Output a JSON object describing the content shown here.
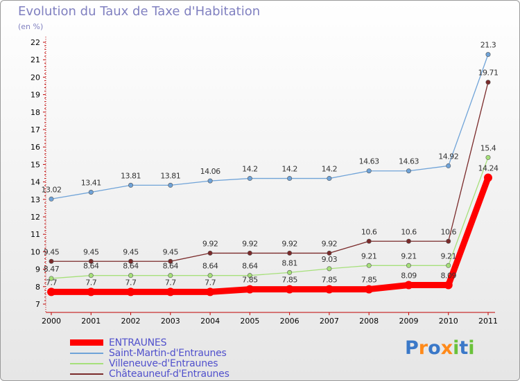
{
  "title": "Evolution du Taux de Taxe d'Habitation",
  "subtitle": "(en %)",
  "logo_text": "Proxiti",
  "chart_data": {
    "type": "line",
    "x": [
      "2000",
      "2001",
      "2002",
      "2003",
      "2004",
      "2005",
      "2006",
      "2007",
      "2008",
      "2009",
      "2010",
      "2011"
    ],
    "ylim": [
      7,
      22
    ],
    "yticks": [
      "7",
      "8",
      "9",
      "10",
      "11",
      "12",
      "13",
      "14",
      "15",
      "16",
      "17",
      "18",
      "19",
      "20",
      "21",
      "22"
    ],
    "grid": false,
    "legend_position": "bottom-left",
    "series": [
      {
        "name": "ENTRAUNES",
        "color": "#ff0000",
        "values": [
          7.7,
          7.7,
          7.7,
          7.7,
          7.7,
          7.85,
          7.85,
          7.85,
          7.85,
          8.09,
          8.09,
          14.24
        ],
        "labels": [
          "7.7",
          "7.7",
          "7.7",
          "7.7",
          "7.7",
          "7.85",
          "7.85",
          "7.85",
          "7.85",
          "8.09",
          "8.09",
          "14.24"
        ]
      },
      {
        "name": "Saint-Martin-d'Entraunes",
        "color": "#6fa3d8",
        "values": [
          13.02,
          13.41,
          13.81,
          13.81,
          14.06,
          14.2,
          14.2,
          14.2,
          14.63,
          14.63,
          14.92,
          21.3
        ],
        "labels": [
          "13.02",
          "13.41",
          "13.81",
          "13.81",
          "14.06",
          "14.2",
          "14.2",
          "14.2",
          "14.63",
          "14.63",
          "14.92",
          "21.3"
        ]
      },
      {
        "name": "Villeneuve-d'Entraunes",
        "color": "#a6e07a",
        "values": [
          8.47,
          8.64,
          8.64,
          8.64,
          8.64,
          8.64,
          8.81,
          9.03,
          9.21,
          9.21,
          9.21,
          15.4
        ],
        "labels": [
          "8.47",
          "8.64",
          "8.64",
          "8.64",
          "8.64",
          "8.64",
          "8.81",
          "9.03",
          "9.21",
          "9.21",
          "9.21",
          "15.4"
        ]
      },
      {
        "name": "Châteauneuf-d'Entraunes",
        "color": "#7a2a2a",
        "values": [
          9.45,
          9.45,
          9.45,
          9.45,
          9.92,
          9.92,
          9.92,
          9.92,
          10.6,
          10.6,
          10.6,
          19.71
        ],
        "labels": [
          "9.45",
          "9.45",
          "9.45",
          "9.45",
          "9.92",
          "9.92",
          "9.92",
          "9.92",
          "10.6",
          "10.6",
          "10.6",
          "19.71"
        ]
      }
    ]
  }
}
